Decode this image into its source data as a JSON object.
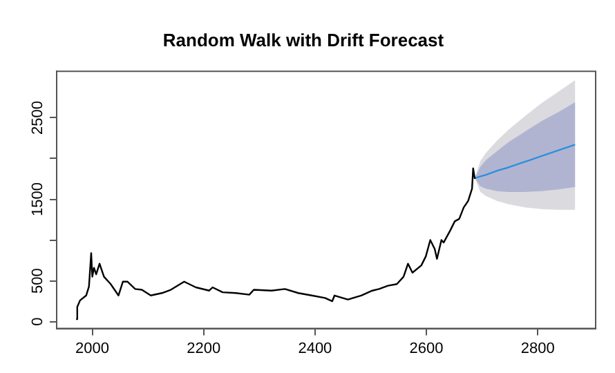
{
  "chart_data": {
    "type": "line",
    "title": "Random Walk with Drift Forecast",
    "xlim": [
      1936,
      2904
    ],
    "xticks": [
      2000,
      2200,
      2400,
      2600,
      2800
    ],
    "ylim": [
      -85,
      3070
    ],
    "yticks": [
      0,
      500,
      {
        "value": 1000,
        "label": null
      },
      1500,
      {
        "value": 2000,
        "label": null
      },
      2500
    ],
    "grid": false,
    "legend": false,
    "marker": "none",
    "series": [
      {
        "color": "#000000",
        "x": [
          1971,
          1973,
          1978,
          1989,
          1994,
          1998,
          2000,
          2003,
          2007,
          2013,
          2021,
          2033,
          2047,
          2055,
          2063,
          2077,
          2089,
          2105,
          2125,
          2141,
          2165,
          2186,
          2210,
          2216,
          2234,
          2258,
          2282,
          2290,
          2322,
          2346,
          2370,
          2394,
          2418,
          2431,
          2435,
          2459,
          2483,
          2503,
          2515,
          2531,
          2547,
          2559,
          2567,
          2575,
          2591,
          2599,
          2607,
          2615,
          2619,
          2627,
          2631,
          2643,
          2651,
          2659,
          2667,
          2675,
          2682,
          2684,
          2687
        ],
        "values": [
          30,
          180,
          260,
          320,
          430,
          840,
          550,
          660,
          580,
          710,
          550,
          460,
          320,
          490,
          490,
          400,
          390,
          320,
          350,
          390,
          490,
          420,
          380,
          420,
          360,
          350,
          330,
          390,
          380,
          400,
          350,
          320,
          290,
          250,
          320,
          270,
          320,
          380,
          400,
          440,
          460,
          550,
          710,
          600,
          690,
          800,
          1000,
          890,
          770,
          1000,
          970,
          1120,
          1230,
          1260,
          1400,
          1480,
          1630,
          1880,
          1750
        ]
      },
      {
        "color": "#dbdbdf",
        "x": [
          2687,
          2697,
          2707,
          2727,
          2747,
          2777,
          2807,
          2837,
          2867
        ],
        "values": [
          null,
          null,
          null,
          null,
          null,
          null,
          null,
          null,
          null
        ],
        "lower": [
          1760,
          1590,
          1540,
          1480,
          1440,
          1400,
          1380,
          1370,
          1370
        ],
        "upper": [
          1760,
          1970,
          2070,
          2220,
          2350,
          2520,
          2680,
          2820,
          2960
        ]
      },
      {
        "color": "#b1b4d1",
        "x": [
          2687,
          2697,
          2707,
          2727,
          2747,
          2777,
          2807,
          2837,
          2867
        ],
        "values": [
          null,
          null,
          null,
          null,
          null,
          null,
          null,
          null,
          null
        ],
        "lower": [
          1760,
          1660,
          1630,
          1600,
          1590,
          1590,
          1600,
          1620,
          1650
        ],
        "upper": [
          1760,
          1900,
          1980,
          2090,
          2200,
          2330,
          2460,
          2570,
          2690
        ]
      },
      {
        "color": "#2c8fe0",
        "x": [
          2687,
          2697,
          2707,
          2727,
          2747,
          2777,
          2807,
          2837,
          2867
        ],
        "values": [
          1760,
          1780,
          1800,
          1850,
          1890,
          1960,
          2030,
          2100,
          2170
        ]
      }
    ]
  }
}
